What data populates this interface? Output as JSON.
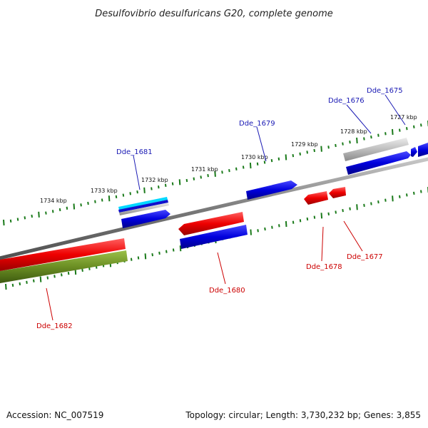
{
  "title": "Desulfovibrio desulfuricans G20, complete genome",
  "footer": {
    "accession": "Accession: NC_007519",
    "summary": "Topology: circular; Length: 3,730,232 bp; Genes: 3,855"
  },
  "ticks": [
    "1727 kbp",
    "1728 kbp",
    "1729 kbp",
    "1730 kbp",
    "1731 kbp",
    "1732 kbp",
    "1733 kbp",
    "1734 kbp"
  ],
  "gene_labels": {
    "plus": [
      "Dde_1675",
      "Dde_1676",
      "Dde_1679",
      "Dde_1681"
    ],
    "minus": [
      "Dde_1677",
      "Dde_1678",
      "Dde_1680",
      "Dde_1682"
    ]
  },
  "colors": {
    "plus_label": "#1a1ab4",
    "minus_label": "#cc0000",
    "cds_plus": "#0000dd",
    "cds_minus": "#ee0000",
    "backbone": "#808080",
    "tick": "#1a7a1a",
    "rrna": "#00d8ff",
    "gene_gray": "#b4b4b4",
    "olive": "#6b8e23"
  }
}
